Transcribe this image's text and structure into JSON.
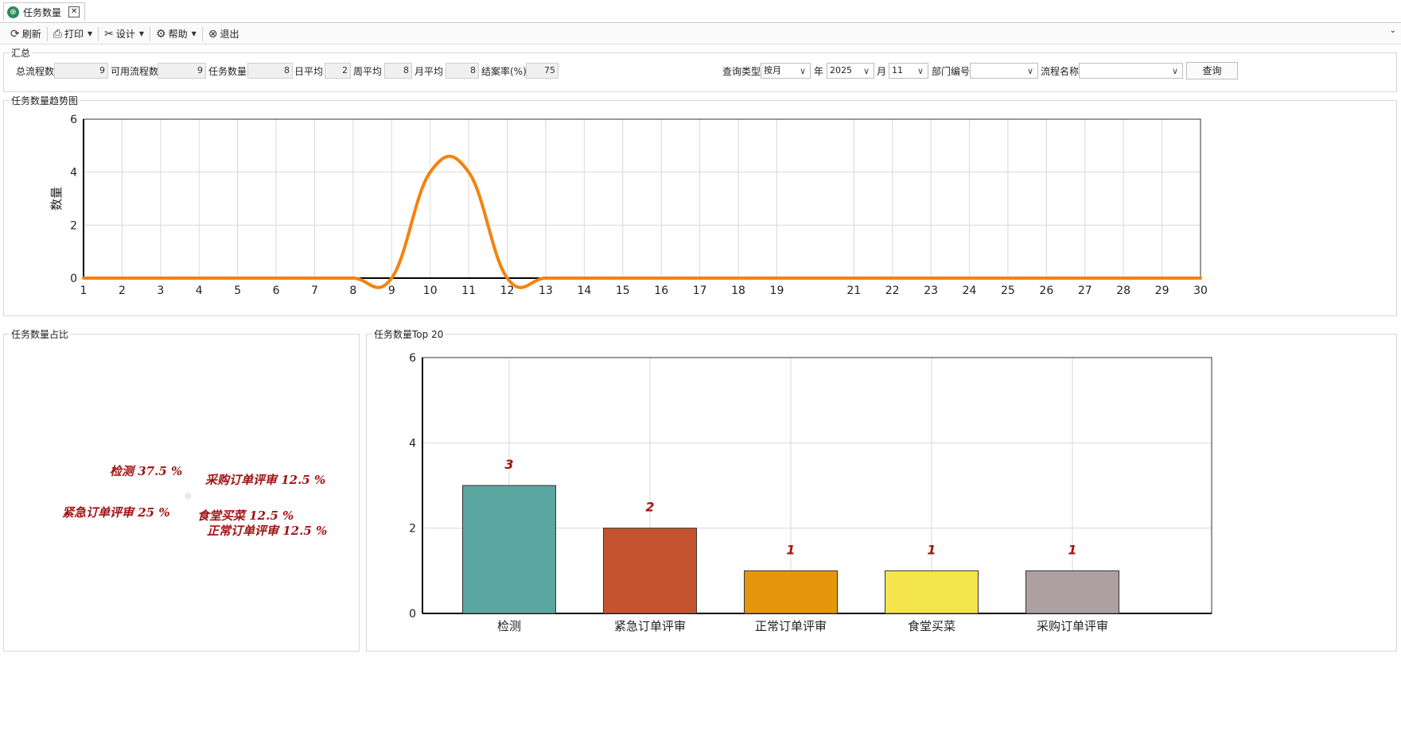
{
  "tab": {
    "title": "任务数量",
    "close": "✕"
  },
  "toolbar": {
    "refresh": "刷新",
    "print": "打印",
    "design": "设计",
    "help": "帮助",
    "exit": "退出"
  },
  "summary": {
    "title": "汇总",
    "total_flows_label": "总流程数",
    "total_flows": "9",
    "avail_flows_label": "可用流程数",
    "avail_flows": "9",
    "task_count_label": "任务数量",
    "task_count": "8",
    "daily_avg_label": "日平均",
    "daily_avg": "2",
    "weekly_avg_label": "周平均",
    "weekly_avg": "8",
    "monthly_avg_label": "月平均",
    "monthly_avg": "8",
    "close_rate_label": "结案率(%)",
    "close_rate": "75"
  },
  "query": {
    "type_label": "查询类型",
    "type_value": "按月",
    "year_label": "年",
    "year_value": "2025",
    "month_label": "月",
    "month_value": "11",
    "dept_label": "部门编号",
    "dept_value": "",
    "flow_label": "流程名称",
    "flow_value": "",
    "button": "查询"
  },
  "panels": {
    "trend_title": "任务数量趋势图",
    "pie_title": "任务数量占比",
    "bar_title": "任务数量Top 20"
  },
  "chart_data": [
    {
      "type": "line",
      "title": "",
      "xlabel": "",
      "ylabel": "数量",
      "x": [
        1,
        2,
        3,
        4,
        5,
        6,
        7,
        8,
        9,
        10,
        11,
        12,
        13,
        14,
        15,
        16,
        17,
        18,
        19,
        21,
        22,
        23,
        24,
        25,
        26,
        27,
        28,
        29,
        30
      ],
      "values": [
        0,
        0,
        0,
        0,
        0,
        0,
        0,
        0,
        0,
        4,
        4,
        0,
        0,
        0,
        0,
        0,
        0,
        0,
        0,
        0,
        0,
        0,
        0,
        0,
        0,
        0,
        0,
        0,
        0
      ],
      "xlim": [
        1,
        30
      ],
      "ylim": [
        0,
        6
      ],
      "yticks": [
        0,
        2,
        4,
        6
      ],
      "grid": true,
      "color": "#f5820f"
    },
    {
      "type": "pie",
      "labels": [
        "检测 37.5 %",
        "采购订单评审 12.5 %",
        "紧急订单评审 25 %",
        "食堂买菜 12.5 %",
        "正常订单评审 12.5 %"
      ],
      "values": [
        37.5,
        12.5,
        25,
        12.5,
        12.5
      ]
    },
    {
      "type": "bar",
      "categories": [
        "检测",
        "紧急订单评审",
        "正常订单评审",
        "食堂买菜",
        "采购订单评审"
      ],
      "values": [
        3,
        2,
        1,
        1,
        1
      ],
      "ylim": [
        0,
        6
      ],
      "yticks": [
        0,
        2,
        4,
        6
      ],
      "grid": true,
      "colors": [
        "#5ba6a0",
        "#c4532f",
        "#e6960b",
        "#f4e54c",
        "#ae9fa3"
      ]
    }
  ]
}
